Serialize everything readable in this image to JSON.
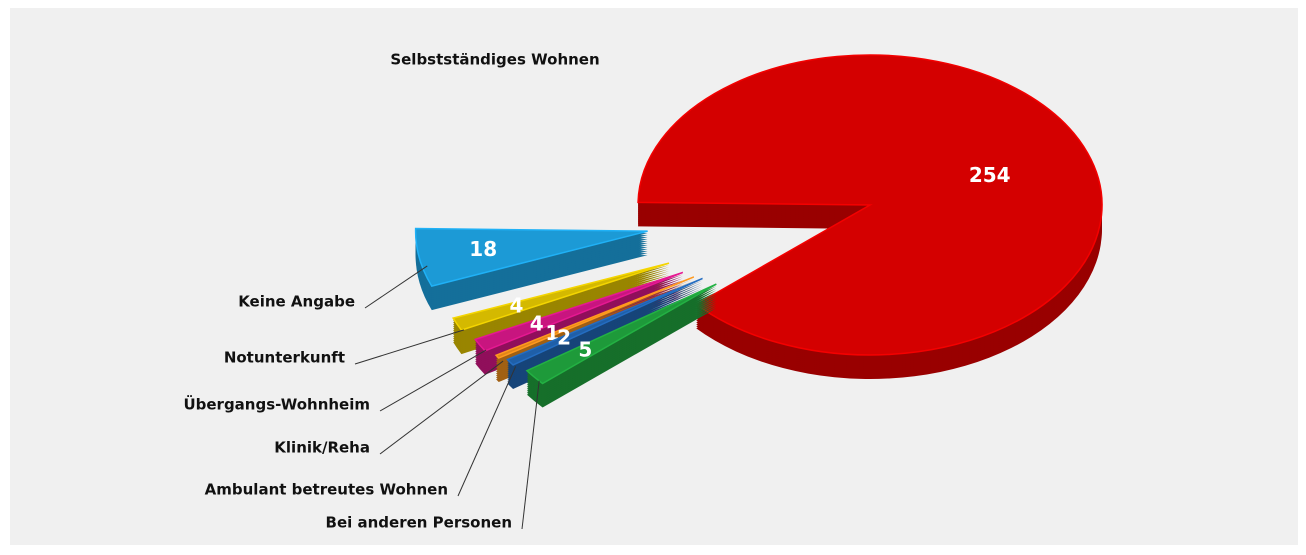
{
  "chart_data": {
    "type": "pie",
    "categories": [
      "Selbstständiges Wohnen",
      "Keine Angabe",
      "Notunterkunft",
      "Übergangs-Wohnheim",
      "Klinik/Reha",
      "Ambulant betreutes Wohnen",
      "Bei anderen Personen"
    ],
    "values": [
      254,
      18,
      4,
      4,
      1,
      2,
      5
    ],
    "colors": [
      "#d40000",
      "#1c9ad6",
      "#d4b900",
      "#c8157f",
      "#e0851a",
      "#1f5fa8",
      "#1e9a3a"
    ]
  }
}
